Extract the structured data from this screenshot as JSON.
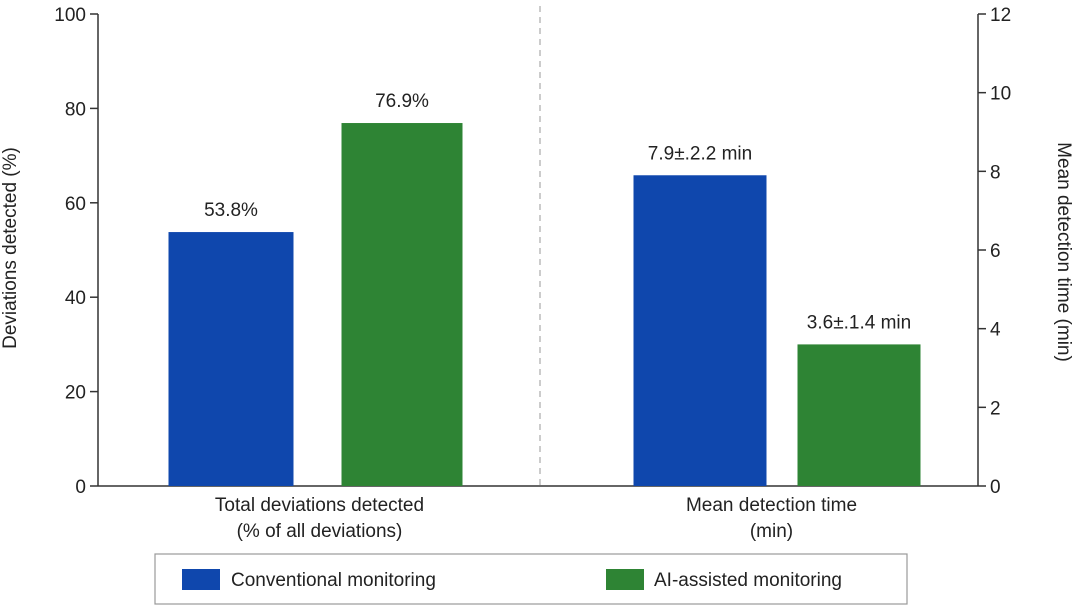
{
  "chart_data": {
    "type": "bar",
    "groups": [
      {
        "category_lines": [
          "Total deviations detected",
          "(% of all deviations)"
        ],
        "axis": "left",
        "values": [
          53.8,
          76.9
        ],
        "labels": [
          "53.8%",
          "76.9%"
        ]
      },
      {
        "category_lines": [
          "Mean detection time",
          "(min)"
        ],
        "axis": "right",
        "values": [
          7.9,
          3.6
        ],
        "labels": [
          "7.9±.2.2 min",
          "3.6±.1.4 min"
        ]
      }
    ],
    "series": [
      {
        "name": "Conventional monitoring",
        "color": "#0f47ad"
      },
      {
        "name": "AI-assisted monitoring",
        "color": "#2e8434"
      }
    ],
    "left_axis": {
      "label": "Deviations detected (%)",
      "ylim": [
        0,
        100
      ],
      "ticks": [
        "0",
        "20",
        "40",
        "60",
        "80",
        "100"
      ]
    },
    "right_axis": {
      "label": "Mean detection time (min)",
      "ylim": [
        0,
        12
      ],
      "ticks": [
        "0",
        "2",
        "4",
        "6",
        "8",
        "10",
        "12"
      ]
    },
    "divider": "dashed",
    "grid": false,
    "legend_position": "bottom"
  }
}
